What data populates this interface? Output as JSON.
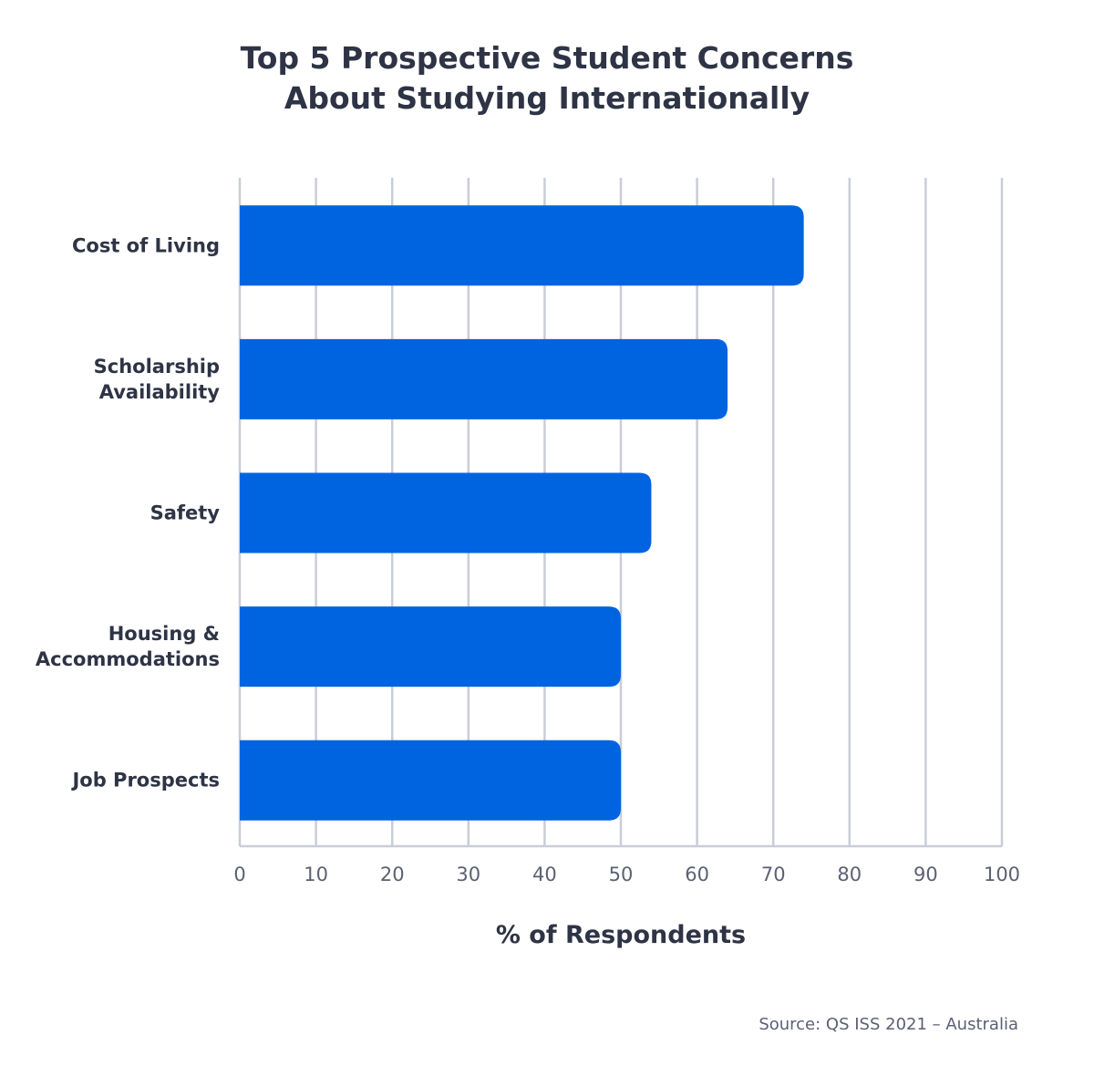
{
  "chart_data": {
    "type": "bar",
    "orientation": "horizontal",
    "title_lines": [
      "Top 5 Prospective Student Concerns",
      "About Studying Internationally"
    ],
    "categories": [
      [
        "Cost of Living"
      ],
      [
        "Scholarship",
        "Availability"
      ],
      [
        "Safety"
      ],
      [
        "Housing &",
        "Accommodations"
      ],
      [
        "Job Prospects"
      ]
    ],
    "values": [
      74,
      64,
      54,
      50,
      50
    ],
    "xlabel": "% of Respondents",
    "ylabel": "",
    "xlim": [
      0,
      100
    ],
    "xticks": [
      "0",
      "10",
      "20",
      "30",
      "40",
      "50",
      "60",
      "70",
      "80",
      "90",
      "100"
    ],
    "grid": "vertical",
    "bar_color": "#0064e0",
    "grid_color": "#c9cdd7",
    "source": "Source: QS ISS 2021 – Australia"
  }
}
